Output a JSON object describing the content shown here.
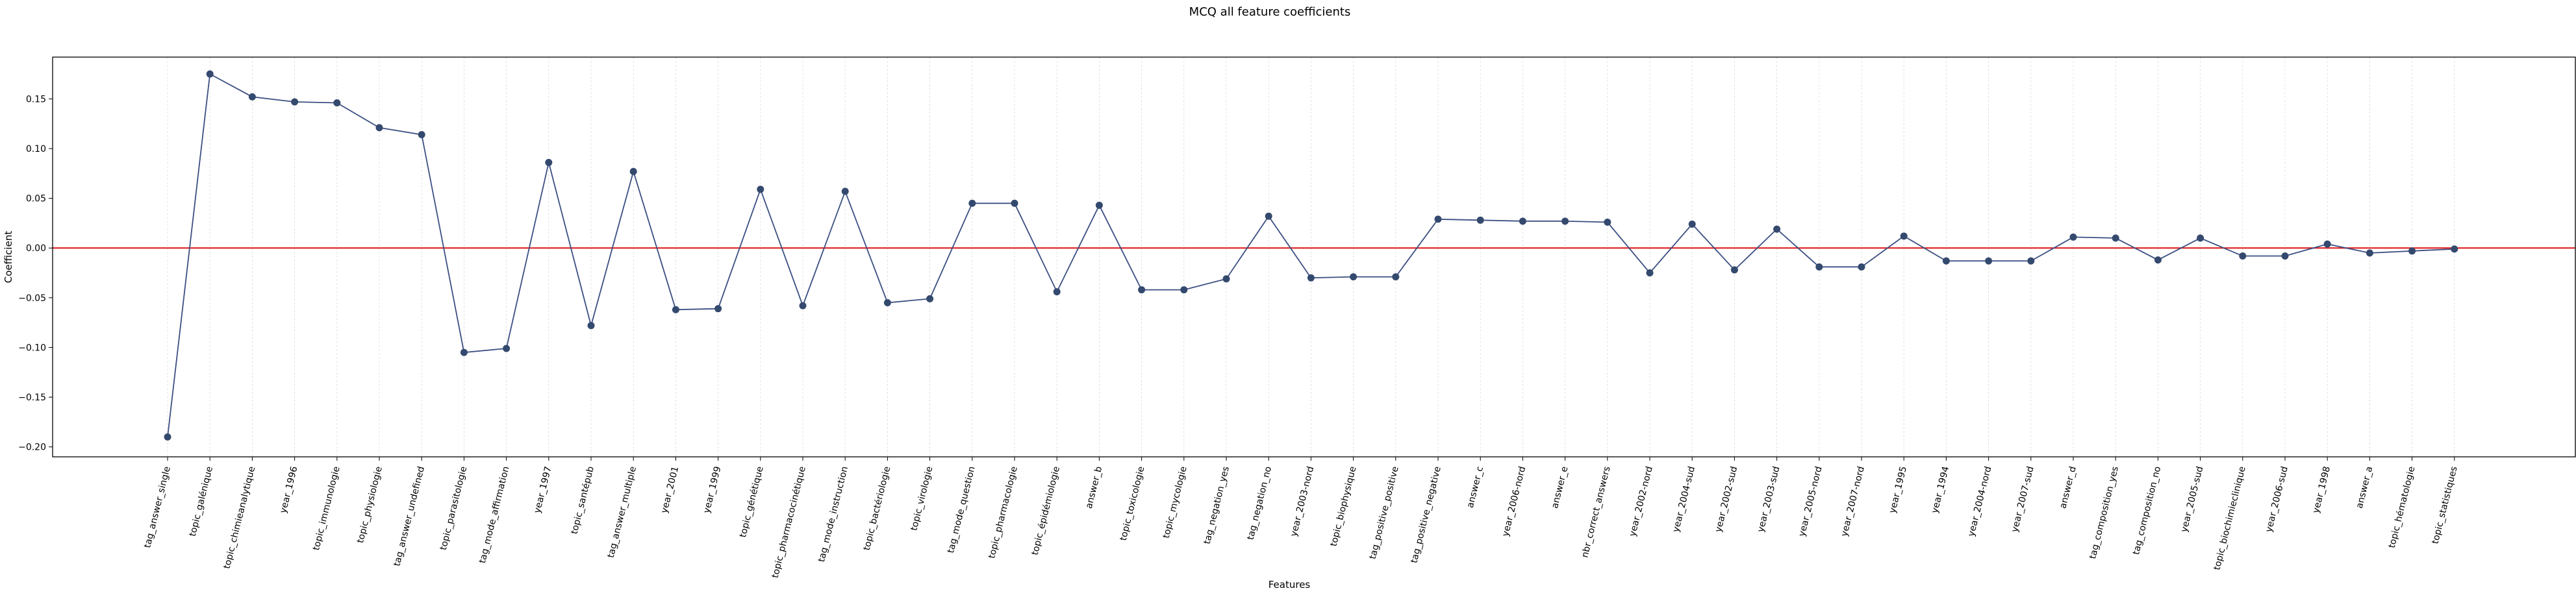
{
  "chart_data": {
    "type": "line",
    "title": "MCQ all feature coefficients",
    "xlabel": "Features",
    "ylabel": "Coefficient",
    "ylim": [
      -0.21,
      0.192
    ],
    "yticks": [
      -0.2,
      -0.15,
      -0.1,
      -0.05,
      0.0,
      0.05,
      0.1,
      0.15
    ],
    "ytick_labels": [
      "−0.20",
      "−0.15",
      "−0.10",
      "−0.05",
      "0.00",
      "0.05",
      "0.10",
      "0.15"
    ],
    "grid": "vertical",
    "reference_line": {
      "y": 0.0,
      "color": "#e02020"
    },
    "line_color": "#3b4f82",
    "marker_color": "#34496e",
    "categories": [
      "tag_answer_single",
      "topic_galénique",
      "topic_chimieanalytique",
      "year_1996",
      "topic_immunologie",
      "topic_physiologie",
      "tag_answer_undefined",
      "topic_parasitologie",
      "tag_mode_affirmation",
      "year_1997",
      "topic_santépub",
      "tag_answer_multiple",
      "year_2001",
      "year_1999",
      "topic_génétique",
      "topic_pharmacocinétique",
      "tag_mode_instruction",
      "topic_bactériologie",
      "topic_virologie",
      "tag_mode_question",
      "topic_pharmacologie",
      "topic_épidémiologie",
      "answer_b",
      "topic_toxicologie",
      "topic_mycologie",
      "tag_negation_yes",
      "tag_negation_no",
      "year_2003-nord",
      "topic_biophysique",
      "tag_positive_positive",
      "tag_positive_negative",
      "answer_c",
      "year_2006-nord",
      "answer_e",
      "nbr_correct_answers",
      "year_2002-nord",
      "year_2004-sud",
      "year_2002-sud",
      "year_2003-sud",
      "year_2005-nord",
      "year_2007-nord",
      "year_1995",
      "year_1994",
      "year_2004-nord",
      "year_2007-sud",
      "answer_d",
      "tag_composition_yes",
      "tag_composition_no",
      "year_2005-sud",
      "topic_biochimieclinique",
      "year_2006-sud",
      "year_1998",
      "answer_a",
      "topic_hématologie",
      "topic_statistiques"
    ],
    "values": [
      -0.19,
      0.175,
      0.152,
      0.147,
      0.146,
      0.121,
      0.114,
      -0.105,
      -0.101,
      0.086,
      -0.078,
      0.077,
      -0.062,
      -0.061,
      0.059,
      -0.058,
      0.057,
      -0.055,
      -0.051,
      0.045,
      0.045,
      -0.044,
      0.043,
      -0.042,
      -0.042,
      -0.031,
      0.032,
      -0.03,
      -0.029,
      -0.029,
      0.029,
      0.028,
      0.027,
      0.027,
      0.026,
      -0.025,
      0.024,
      -0.022,
      0.019,
      -0.019,
      -0.019,
      0.012,
      -0.013,
      -0.013,
      -0.013,
      0.011,
      0.01,
      -0.012,
      0.01,
      -0.008,
      -0.008,
      0.004,
      -0.005,
      -0.003,
      -0.001
    ]
  }
}
